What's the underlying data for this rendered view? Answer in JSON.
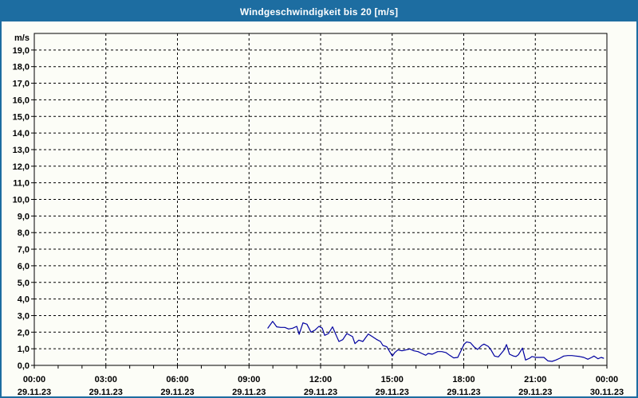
{
  "window": {
    "title": "Windgeschwindigkeit bis 20 [m/s]"
  },
  "colors": {
    "header_bg": "#1D6DA1",
    "window_border": "#1D6DA1",
    "title_text": "#FFFFFF",
    "line": "#0000A0",
    "grid": "#000000",
    "axis": "#000000",
    "label_text": "#000000",
    "background": "#FCFDF7"
  },
  "chart_data": {
    "type": "line",
    "title": "Windgeschwindigkeit bis 20 [m/s]",
    "y_unit_label": "m/s",
    "ylim": [
      0,
      20
    ],
    "y_tick_step": 1.0,
    "y_label_min": 0,
    "y_label_max": 19,
    "y_tick_decimal_separator": ",",
    "x_hours_range": [
      0,
      24
    ],
    "x_minor_tick_step_hours": 1,
    "x_gridline_step_hours": 3,
    "grid_style": "dashed",
    "legend": "none",
    "x_ticks": [
      {
        "hour": 0,
        "time": "00:00",
        "date": "29.11.23"
      },
      {
        "hour": 3,
        "time": "03:00",
        "date": "29.11.23"
      },
      {
        "hour": 6,
        "time": "06:00",
        "date": "29.11.23"
      },
      {
        "hour": 9,
        "time": "09:00",
        "date": "29.11.23"
      },
      {
        "hour": 12,
        "time": "12:00",
        "date": "29.11.23"
      },
      {
        "hour": 15,
        "time": "15:00",
        "date": "29.11.23"
      },
      {
        "hour": 18,
        "time": "18:00",
        "date": "29.11.23"
      },
      {
        "hour": 21,
        "time": "21:00",
        "date": "29.11.23"
      },
      {
        "hour": 24,
        "time": "00:00",
        "date": "30.11.23"
      }
    ],
    "series": [
      {
        "name": "Windgeschwindigkeit",
        "color": "#0000A0",
        "points_hour_value": [
          [
            9.79,
            2.25
          ],
          [
            9.99,
            2.65
          ],
          [
            10.16,
            2.32
          ],
          [
            10.33,
            2.29
          ],
          [
            10.5,
            2.29
          ],
          [
            10.66,
            2.19
          ],
          [
            10.83,
            2.24
          ],
          [
            11.0,
            2.35
          ],
          [
            11.1,
            1.87
          ],
          [
            11.26,
            2.56
          ],
          [
            11.43,
            2.48
          ],
          [
            11.6,
            2.0
          ],
          [
            11.77,
            2.13
          ],
          [
            11.93,
            2.35
          ],
          [
            12.07,
            2.24
          ],
          [
            12.17,
            1.81
          ],
          [
            12.33,
            1.92
          ],
          [
            12.5,
            2.32
          ],
          [
            12.67,
            1.76
          ],
          [
            12.77,
            1.44
          ],
          [
            12.93,
            1.55
          ],
          [
            13.1,
            1.92
          ],
          [
            13.34,
            1.73
          ],
          [
            13.44,
            1.31
          ],
          [
            13.6,
            1.52
          ],
          [
            13.77,
            1.44
          ],
          [
            14.0,
            1.89
          ],
          [
            14.17,
            1.73
          ],
          [
            14.34,
            1.57
          ],
          [
            14.51,
            1.44
          ],
          [
            14.61,
            1.2
          ],
          [
            14.77,
            1.12
          ],
          [
            15.01,
            0.56
          ],
          [
            15.11,
            0.77
          ],
          [
            15.24,
            0.93
          ],
          [
            15.41,
            0.88
          ],
          [
            15.58,
            0.93
          ],
          [
            15.74,
            0.99
          ],
          [
            15.91,
            0.88
          ],
          [
            16.08,
            0.83
          ],
          [
            16.24,
            0.72
          ],
          [
            16.41,
            0.61
          ],
          [
            16.51,
            0.72
          ],
          [
            16.68,
            0.67
          ],
          [
            16.91,
            0.83
          ],
          [
            17.08,
            0.83
          ],
          [
            17.25,
            0.77
          ],
          [
            17.41,
            0.61
          ],
          [
            17.58,
            0.45
          ],
          [
            17.75,
            0.48
          ],
          [
            18.02,
            1.28
          ],
          [
            18.12,
            1.41
          ],
          [
            18.28,
            1.36
          ],
          [
            18.45,
            1.09
          ],
          [
            18.58,
            0.96
          ],
          [
            18.75,
            1.2
          ],
          [
            18.85,
            1.28
          ],
          [
            19.02,
            1.15
          ],
          [
            19.12,
            0.99
          ],
          [
            19.29,
            0.56
          ],
          [
            19.45,
            0.51
          ],
          [
            19.69,
            0.93
          ],
          [
            19.79,
            1.25
          ],
          [
            19.92,
            0.67
          ],
          [
            20.09,
            0.56
          ],
          [
            20.19,
            0.53
          ],
          [
            20.29,
            0.64
          ],
          [
            20.46,
            1.04
          ],
          [
            20.59,
            0.32
          ],
          [
            20.76,
            0.43
          ],
          [
            20.86,
            0.53
          ],
          [
            21.03,
            0.48
          ],
          [
            21.19,
            0.48
          ],
          [
            21.36,
            0.48
          ],
          [
            21.53,
            0.27
          ],
          [
            21.7,
            0.24
          ],
          [
            21.86,
            0.32
          ],
          [
            22.03,
            0.43
          ],
          [
            22.19,
            0.56
          ],
          [
            22.36,
            0.59
          ],
          [
            22.53,
            0.59
          ],
          [
            22.7,
            0.56
          ],
          [
            22.86,
            0.53
          ],
          [
            23.03,
            0.48
          ],
          [
            23.2,
            0.37
          ],
          [
            23.36,
            0.48
          ],
          [
            23.46,
            0.56
          ],
          [
            23.63,
            0.4
          ],
          [
            23.76,
            0.48
          ],
          [
            23.86,
            0.43
          ]
        ]
      }
    ]
  }
}
